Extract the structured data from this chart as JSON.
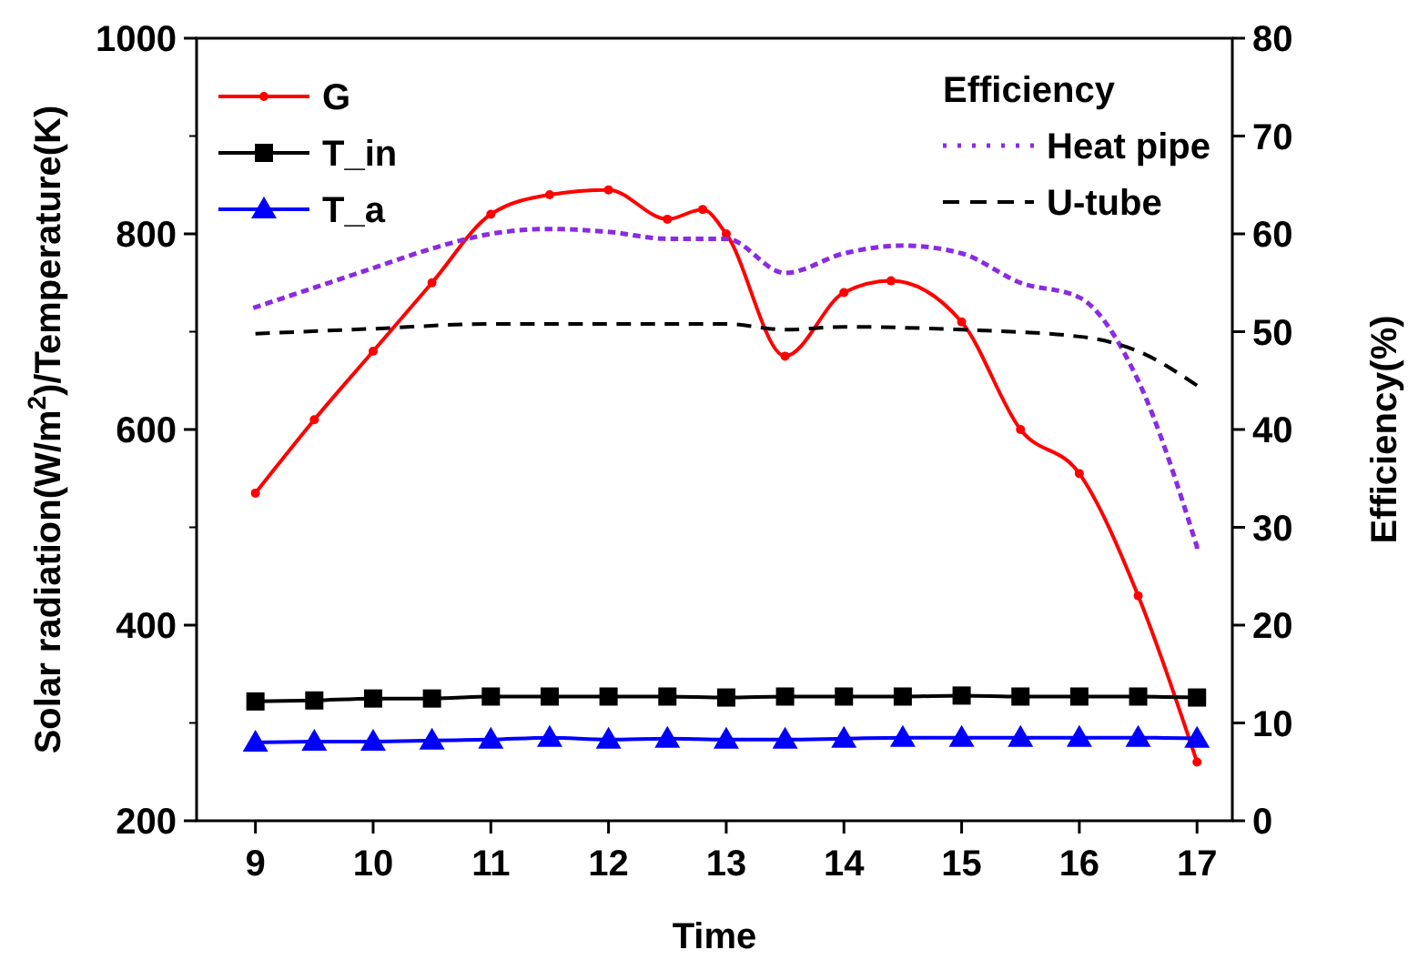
{
  "chart_data": {
    "type": "line",
    "xlabel": "Time",
    "ylabel": "Solar radiation(W/m$^{2}$)/Temperature(K)",
    "y2label": "Efficiency(%)",
    "legend_title": "Efficiency",
    "legend": "top",
    "xlim": [
      8.5,
      17.3
    ],
    "xticks": [
      9,
      10,
      11,
      12,
      13,
      14,
      15,
      16,
      17
    ],
    "ylim": [
      200,
      1000
    ],
    "yticks": [
      200,
      400,
      600,
      800,
      1000
    ],
    "y2lim": [
      0,
      80
    ],
    "y2ticks": [
      0,
      10,
      20,
      30,
      40,
      50,
      60,
      70,
      80
    ],
    "grid": false,
    "series": [
      {
        "name": "G",
        "color": "#ff0000",
        "marker": "circle",
        "line_style": "solid",
        "x": [
          9,
          9.5,
          10,
          10.5,
          11,
          11.5,
          12,
          12.5,
          12.8,
          13,
          13.5,
          14,
          14.4,
          15,
          15.5,
          16,
          16.5,
          17
        ],
        "values": [
          535,
          610,
          680,
          750,
          820,
          840,
          845,
          815,
          825,
          800,
          675,
          740,
          752,
          710,
          600,
          555,
          430,
          260
        ]
      },
      {
        "name": "T_in",
        "color": "#000000",
        "marker": "square",
        "line_style": "solid",
        "x": [
          9,
          9.5,
          10,
          10.5,
          11,
          11.5,
          12,
          12.5,
          13,
          13.5,
          14,
          14.5,
          15,
          15.5,
          16,
          16.5,
          17
        ],
        "values": [
          322,
          323,
          325,
          325,
          327,
          327,
          327,
          327,
          326,
          327,
          327,
          327,
          328,
          327,
          327,
          327,
          326
        ]
      },
      {
        "name": "T_a",
        "color": "#0000ff",
        "marker": "triangle",
        "line_style": "solid",
        "x": [
          9,
          9.5,
          10,
          10.5,
          11,
          11.5,
          12,
          12.5,
          13,
          13.5,
          14,
          14.5,
          15,
          15.5,
          16,
          16.5,
          17
        ],
        "values": [
          280,
          281,
          281,
          282,
          283,
          285,
          283,
          284,
          283,
          283,
          284,
          285,
          285,
          285,
          285,
          285,
          284
        ]
      },
      {
        "name": "Heat pipe",
        "color": "#8a2be2",
        "marker": "none",
        "line_style": "dotted",
        "axis": "y2",
        "x": [
          9,
          9.5,
          10,
          10.5,
          11,
          11.5,
          12,
          12.5,
          13,
          13.5,
          14,
          14.5,
          15,
          15.5,
          16,
          16.5,
          17
        ],
        "values": [
          52.5,
          54.5,
          56.5,
          58.5,
          60,
          60.5,
          60.2,
          59.5,
          59.5,
          56,
          58,
          58.8,
          58,
          55,
          53.5,
          45,
          28
        ]
      },
      {
        "name": "U-tube",
        "color": "#000000",
        "marker": "none",
        "line_style": "dashed",
        "axis": "y2",
        "x": [
          9,
          10,
          11,
          12,
          13,
          13.5,
          14,
          15,
          16,
          16.5,
          17
        ],
        "values": [
          49.8,
          50.3,
          50.8,
          50.8,
          50.8,
          50.2,
          50.5,
          50.2,
          49.5,
          48,
          44.5
        ]
      }
    ]
  }
}
